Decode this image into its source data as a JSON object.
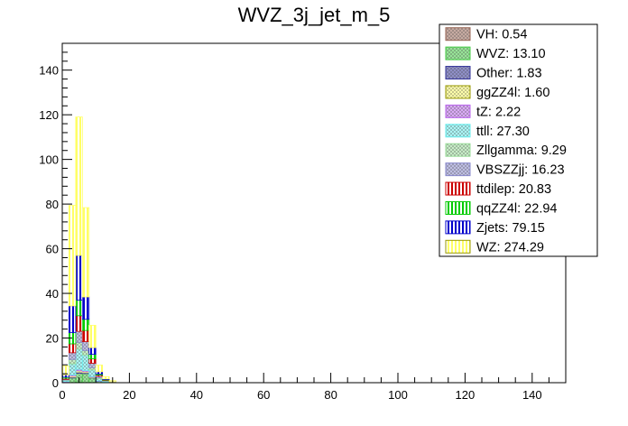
{
  "chart_data": {
    "type": "bar",
    "title": "WVZ_3j_jet_m_5",
    "xlabel": "",
    "ylabel": "",
    "stacked": true,
    "xlim": [
      0,
      150
    ],
    "ylim": [
      0,
      152
    ],
    "bin_width": 2,
    "x_ticks": [
      0,
      20,
      40,
      60,
      80,
      100,
      120,
      140
    ],
    "y_ticks": [
      0,
      20,
      40,
      60,
      80,
      100,
      120,
      140
    ],
    "legend_position": "top-right",
    "bins": [
      0,
      2,
      4,
      6,
      8,
      10,
      12,
      14,
      16
    ],
    "series": [
      {
        "name": "WZ",
        "legend_label": "WZ: 274.29",
        "color": "#ffff66",
        "pattern": "vertical",
        "values": [
          4,
          45,
          62,
          40,
          10,
          3,
          1,
          0.5,
          0
        ]
      },
      {
        "name": "Zjets",
        "legend_label": "Zjets: 79.15",
        "color": "#0000cc",
        "pattern": "vertical",
        "values": [
          1,
          12,
          20,
          10,
          3,
          1,
          0.3,
          0.2,
          0
        ]
      },
      {
        "name": "qqZZ4l",
        "legend_label": "qqZZ4l: 22.94",
        "color": "#00cc00",
        "pattern": "vertical",
        "values": [
          0.5,
          5,
          7,
          5,
          2,
          0.5,
          0.2,
          0,
          0
        ]
      },
      {
        "name": "ttdilep",
        "legend_label": "ttdilep: 20.83",
        "color": "#cc0000",
        "pattern": "vertical",
        "values": [
          0.5,
          4,
          7,
          5,
          2,
          0.5,
          0.2,
          0,
          0
        ]
      },
      {
        "name": "VBSZZjj",
        "legend_label": "VBSZZjj: 16.23",
        "color": "#8888cc",
        "pattern": "cross",
        "values": [
          0.3,
          3,
          5,
          4,
          2,
          0.7,
          0.2,
          0,
          0
        ]
      },
      {
        "name": "Zllgamma",
        "legend_label": "Zllgamma: 9.29",
        "color": "#99dd99",
        "pattern": "cross",
        "values": [
          0.2,
          2,
          3,
          2,
          1,
          0.4,
          0.2,
          0,
          0
        ]
      },
      {
        "name": "ttll",
        "legend_label": "ttll: 27.30",
        "color": "#66eeee",
        "pattern": "cross",
        "values": [
          0.5,
          5,
          9,
          7,
          3,
          1,
          0.3,
          0.2,
          0
        ]
      },
      {
        "name": "tZ",
        "legend_label": "tZ: 2.22",
        "color": "#bb66ee",
        "pattern": "cross",
        "values": [
          0.1,
          0.5,
          0.7,
          0.5,
          0.2,
          0.1,
          0,
          0,
          0
        ]
      },
      {
        "name": "ggZZ4l",
        "legend_label": "ggZZ4l: 1.60",
        "color": "#ffff66",
        "pattern": "cross",
        "values": [
          0.1,
          0.4,
          0.5,
          0.4,
          0.2,
          0,
          0,
          0,
          0
        ]
      },
      {
        "name": "Other",
        "legend_label": "Other: 1.83",
        "color": "#333399",
        "pattern": "cross",
        "values": [
          0.1,
          0.4,
          0.6,
          0.4,
          0.2,
          0.1,
          0,
          0,
          0
        ]
      },
      {
        "name": "WVZ",
        "legend_label": "WVZ: 13.10",
        "color": "#44cc44",
        "pattern": "cross",
        "values": [
          0.2,
          2,
          4,
          4,
          2,
          0.6,
          0.3,
          0,
          0
        ]
      },
      {
        "name": "VH",
        "legend_label": "VH: 0.54",
        "color": "#996655",
        "pattern": "cross",
        "values": [
          0,
          0.1,
          0.2,
          0.1,
          0.1,
          0,
          0,
          0,
          0
        ]
      }
    ]
  }
}
